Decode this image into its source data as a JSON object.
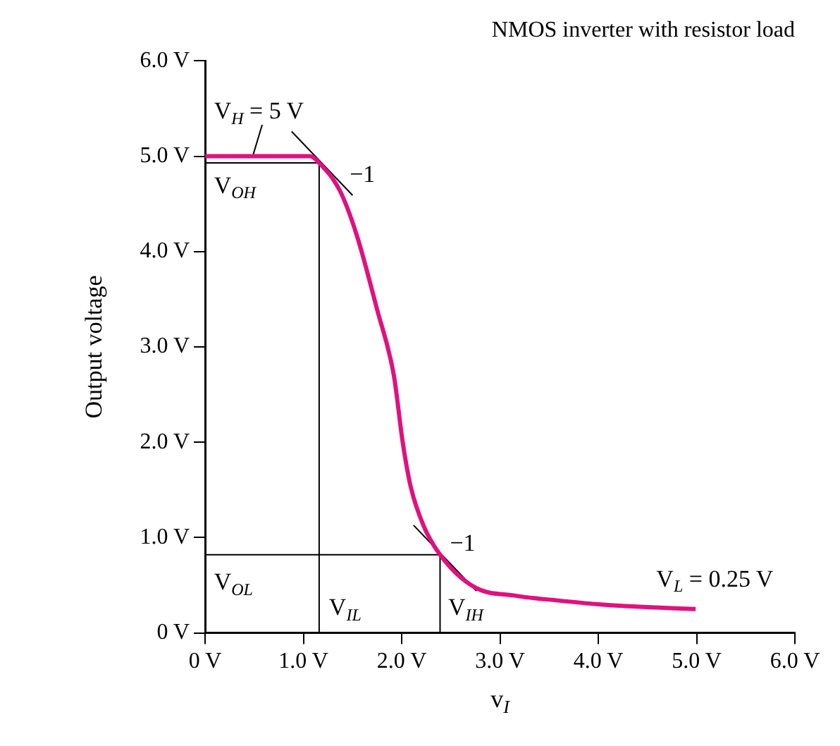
{
  "chart_data": {
    "type": "line",
    "title": "NMOS inverter with resistor load",
    "xlabel": "v$_{I}$",
    "ylabel": "Output voltage",
    "xlim": [
      0,
      6
    ],
    "ylim": [
      0,
      6
    ],
    "xticks": [
      {
        "value": 0,
        "label": "0 V"
      },
      {
        "value": 1,
        "label": "1.0 V"
      },
      {
        "value": 2,
        "label": "2.0 V"
      },
      {
        "value": 3,
        "label": "3.0 V"
      },
      {
        "value": 4,
        "label": "4.0 V"
      },
      {
        "value": 5,
        "label": "5.0 V"
      },
      {
        "value": 6,
        "label": "6.0 V"
      }
    ],
    "yticks": [
      {
        "value": 0,
        "label": "0 V"
      },
      {
        "value": 1,
        "label": "1.0 V"
      },
      {
        "value": 2,
        "label": "2.0 V"
      },
      {
        "value": 3,
        "label": "3.0 V"
      },
      {
        "value": 4,
        "label": "4.0 V"
      },
      {
        "value": 5,
        "label": "5.0 V"
      },
      {
        "value": 6,
        "label": "6.0 V"
      }
    ],
    "grid": false,
    "legend": false,
    "marker": "none",
    "line_style": "solid",
    "series": [
      {
        "color": "#e0117f",
        "x": [
          0,
          0.5,
          1.0,
          1.07,
          1.16,
          1.37,
          1.54,
          1.75,
          1.92,
          2.01,
          2.09,
          2.22,
          2.39,
          2.74,
          3.16,
          3.59,
          4.0,
          4.5,
          4.99
        ],
        "values": [
          5.0,
          5.0,
          5.0,
          5.0,
          4.93,
          4.64,
          4.18,
          3.39,
          2.7,
          2.0,
          1.54,
          1.13,
          0.82,
          0.48,
          0.39,
          0.34,
          0.3,
          0.27,
          0.25
        ]
      },
      {
        "color": "#000000",
        "x": [
          0.88,
          1.5
        ],
        "values": [
          5.26,
          4.59
        ]
      },
      {
        "color": "#000000",
        "x": [
          2.12,
          2.76
        ],
        "values": [
          1.13,
          0.44
        ]
      },
      {
        "color": "#000000",
        "x": [
          0,
          1.16,
          1.16
        ],
        "values": [
          4.93,
          4.93,
          0
        ]
      },
      {
        "color": "#000000",
        "x": [
          0,
          2.39,
          2.39
        ],
        "values": [
          0.82,
          0.82,
          0
        ]
      },
      {
        "color": "#000000",
        "x": [
          0.49,
          0.58
        ],
        "values": [
          5.02,
          5.33
        ]
      }
    ],
    "annotations": [
      "V$_{H}$ = 5 V",
      "V$_{OH}$",
      "−1",
      "V$_{OL}$",
      "V$_{IL}$",
      "V$_{IH}$",
      "−1",
      "V$_{L}$ = 0.25 V"
    ]
  }
}
